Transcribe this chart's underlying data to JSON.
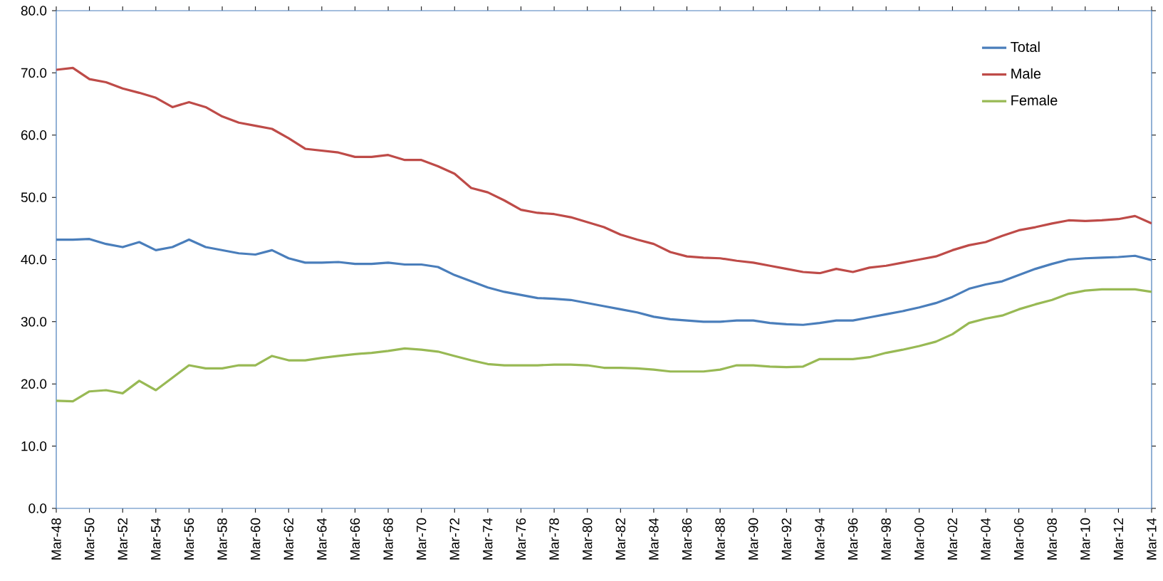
{
  "chart_data": {
    "type": "line",
    "x": [
      "1948-03",
      "1949-03",
      "1950-03",
      "1951-03",
      "1952-03",
      "1953-03",
      "1954-03",
      "1955-03",
      "1956-03",
      "1957-03",
      "1958-03",
      "1959-03",
      "1960-03",
      "1961-03",
      "1962-03",
      "1963-03",
      "1964-03",
      "1965-03",
      "1966-03",
      "1967-03",
      "1968-03",
      "1969-03",
      "1970-03",
      "1971-03",
      "1972-03",
      "1973-03",
      "1974-03",
      "1975-03",
      "1976-03",
      "1977-03",
      "1978-03",
      "1979-03",
      "1980-03",
      "1981-03",
      "1982-03",
      "1983-03",
      "1984-03",
      "1985-03",
      "1986-03",
      "1987-03",
      "1988-03",
      "1989-03",
      "1990-03",
      "1991-03",
      "1992-03",
      "1993-03",
      "1994-03",
      "1995-03",
      "1996-03",
      "1997-03",
      "1998-03",
      "1999-03",
      "2000-03",
      "2001-03",
      "2002-03",
      "2003-03",
      "2004-03",
      "2005-03",
      "2006-03",
      "2007-03",
      "2008-03",
      "2009-03",
      "2010-03",
      "2011-03",
      "2012-03",
      "2013-03",
      "2014-03"
    ],
    "series": [
      {
        "name": "Total",
        "color": "#4a7ebb",
        "values": [
          43.2,
          43.2,
          43.3,
          42.5,
          42,
          42.8,
          41.5,
          42,
          43.2,
          42,
          41.5,
          41,
          40.8,
          41.5,
          40.2,
          39.5,
          39.5,
          39.6,
          39.3,
          39.3,
          39.5,
          39.2,
          39.2,
          38.8,
          37.5,
          36.5,
          35.5,
          34.8,
          34.3,
          33.8,
          33.7,
          33.5,
          33,
          32.5,
          32,
          31.5,
          30.8,
          30.4,
          30.2,
          30,
          30,
          30.2,
          30.2,
          29.8,
          29.6,
          29.5,
          29.8,
          30.2,
          30.2,
          30.7,
          31.2,
          31.7,
          32.3,
          33,
          34,
          35.3,
          36,
          36.5,
          37.5,
          38.5,
          39.3,
          40,
          40.2,
          40.3,
          40.4,
          40.6,
          39.9
        ]
      },
      {
        "name": "Male",
        "color": "#be4b48",
        "values": [
          70.5,
          70.8,
          69,
          68.5,
          67.5,
          66.8,
          66,
          64.5,
          65.3,
          64.5,
          63,
          62,
          61.5,
          61,
          59.5,
          57.8,
          57.5,
          57.2,
          56.5,
          56.5,
          56.8,
          56,
          56,
          55,
          53.8,
          51.5,
          50.8,
          49.5,
          48,
          47.5,
          47.3,
          46.8,
          46,
          45.2,
          44,
          43.2,
          42.5,
          41.2,
          40.5,
          40.3,
          40.2,
          39.8,
          39.5,
          39,
          38.5,
          38,
          37.8,
          38.5,
          38,
          38.7,
          39,
          39.5,
          40,
          40.5,
          41.5,
          42.3,
          42.8,
          43.8,
          44.7,
          45.2,
          45.8,
          46.3,
          46.2,
          46.3,
          46.5,
          47,
          45.8
        ]
      },
      {
        "name": "Female",
        "color": "#98b954",
        "values": [
          17.3,
          17.2,
          18.8,
          19,
          18.5,
          20.5,
          19,
          21,
          23,
          22.5,
          22.5,
          23,
          23,
          24.5,
          23.8,
          23.8,
          24.2,
          24.5,
          24.8,
          25,
          25.3,
          25.7,
          25.5,
          25.2,
          24.5,
          23.8,
          23.2,
          23,
          23,
          23,
          23.1,
          23.1,
          23,
          22.6,
          22.6,
          22.5,
          22.3,
          22,
          22,
          22,
          22.3,
          23,
          23,
          22.8,
          22.7,
          22.8,
          24,
          24,
          24,
          24.3,
          25,
          25.5,
          26.1,
          26.8,
          28,
          29.8,
          30.5,
          31,
          32,
          32.8,
          33.5,
          34.5,
          35,
          35.2,
          35.2,
          35.2,
          34.8
        ]
      }
    ],
    "xlim": [
      "1948-03",
      "2014-03"
    ],
    "xticks": [
      {
        "value": "1948-03",
        "label": "Mar-48"
      },
      {
        "value": "1950-03",
        "label": "Mar-50"
      },
      {
        "value": "1952-03",
        "label": "Mar-52"
      },
      {
        "value": "1954-03",
        "label": "Mar-54"
      },
      {
        "value": "1956-03",
        "label": "Mar-56"
      },
      {
        "value": "1958-03",
        "label": "Mar-58"
      },
      {
        "value": "1960-03",
        "label": "Mar-60"
      },
      {
        "value": "1962-03",
        "label": "Mar-62"
      },
      {
        "value": "1964-03",
        "label": "Mar-64"
      },
      {
        "value": "1966-03",
        "label": "Mar-66"
      },
      {
        "value": "1968-03",
        "label": "Mar-68"
      },
      {
        "value": "1970-03",
        "label": "Mar-70"
      },
      {
        "value": "1972-03",
        "label": "Mar-72"
      },
      {
        "value": "1974-03",
        "label": "Mar-74"
      },
      {
        "value": "1976-03",
        "label": "Mar-76"
      },
      {
        "value": "1978-03",
        "label": "Mar-78"
      },
      {
        "value": "1980-03",
        "label": "Mar-80"
      },
      {
        "value": "1982-03",
        "label": "Mar-82"
      },
      {
        "value": "1984-03",
        "label": "Mar-84"
      },
      {
        "value": "1986-03",
        "label": "Mar-86"
      },
      {
        "value": "1988-03",
        "label": "Mar-88"
      },
      {
        "value": "1990-03",
        "label": "Mar-90"
      },
      {
        "value": "1992-03",
        "label": "Mar-92"
      },
      {
        "value": "1994-03",
        "label": "Mar-94"
      },
      {
        "value": "1996-03",
        "label": "Mar-96"
      },
      {
        "value": "1998-03",
        "label": "Mar-98"
      },
      {
        "value": "2000-03",
        "label": "Mar-00"
      },
      {
        "value": "2002-03",
        "label": "Mar-02"
      },
      {
        "value": "2004-03",
        "label": "Mar-04"
      },
      {
        "value": "2006-03",
        "label": "Mar-06"
      },
      {
        "value": "2008-03",
        "label": "Mar-08"
      },
      {
        "value": "2010-03",
        "label": "Mar-10"
      },
      {
        "value": "2012-03",
        "label": "Mar-12"
      },
      {
        "value": "2014-03",
        "label": "Mar-14"
      }
    ],
    "ylim": [
      0,
      80
    ],
    "yticks": [
      {
        "value": 0,
        "label": "0.0"
      },
      {
        "value": 10,
        "label": "10.0"
      },
      {
        "value": 20,
        "label": "20.0"
      },
      {
        "value": 30,
        "label": "30.0"
      },
      {
        "value": 40,
        "label": "40.0"
      },
      {
        "value": 50,
        "label": "50.0"
      },
      {
        "value": 60,
        "label": "60.0"
      },
      {
        "value": 70,
        "label": "70.0"
      },
      {
        "value": 80,
        "label": "80.0"
      }
    ],
    "grid": false,
    "legend": "top right",
    "marker": "none",
    "line_style": "solid"
  }
}
